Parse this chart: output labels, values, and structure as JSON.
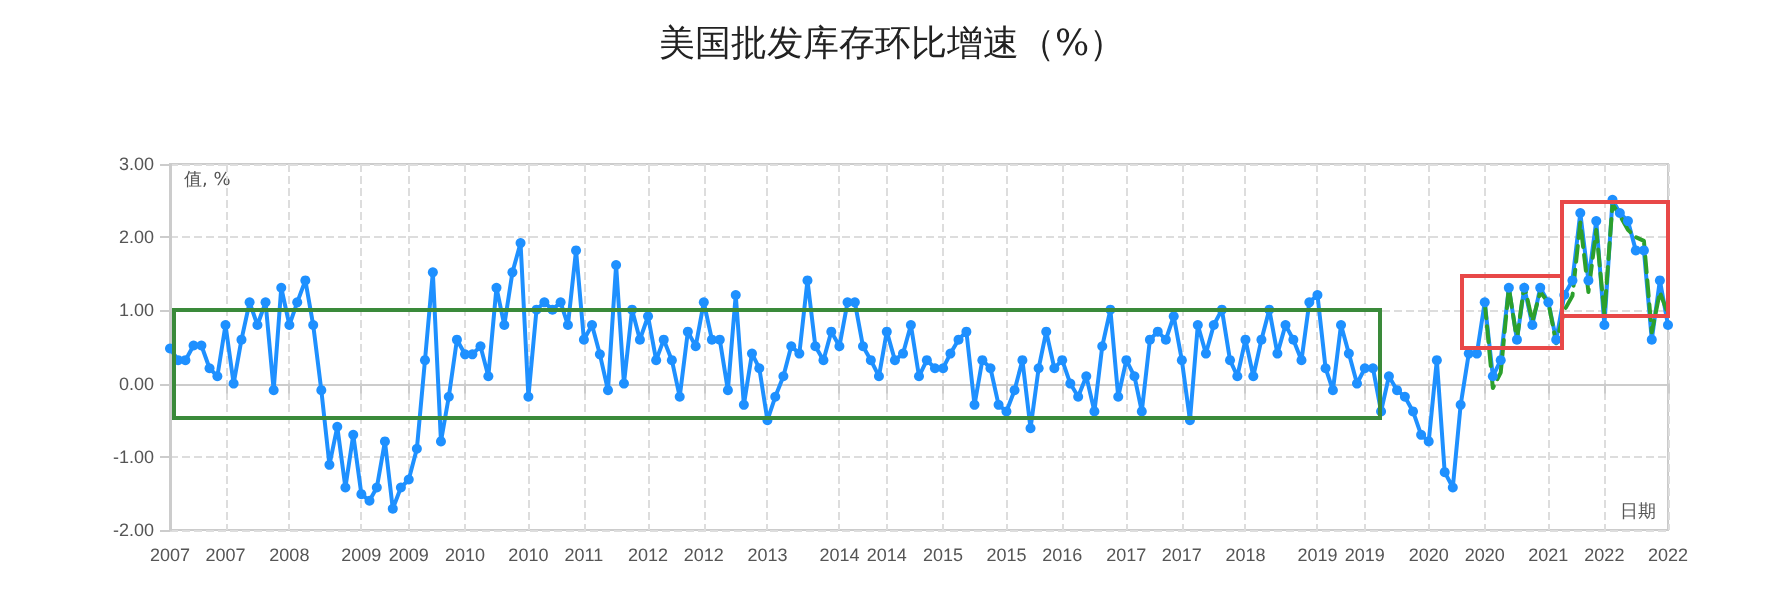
{
  "chart_data": {
    "type": "line",
    "title": "美国批发库存环比增速（%）",
    "ylabel": "值, %",
    "xlabel": "日期",
    "x": [
      "2007-01",
      "2007-02",
      "2007-03",
      "2007-04",
      "2007-05",
      "2007-06",
      "2007-07",
      "2007-08",
      "2007-09",
      "2007-10",
      "2007-11",
      "2007-12",
      "2008-01",
      "2008-02",
      "2008-03",
      "2008-04",
      "2008-05",
      "2008-06",
      "2008-07",
      "2008-08",
      "2008-09",
      "2008-10",
      "2008-11",
      "2008-12",
      "2009-01",
      "2009-02",
      "2009-03",
      "2009-04",
      "2009-05",
      "2009-06",
      "2009-07",
      "2009-08",
      "2009-09",
      "2009-10",
      "2009-11",
      "2009-12",
      "2010-01",
      "2010-02",
      "2010-03",
      "2010-04",
      "2010-05",
      "2010-06",
      "2010-07",
      "2010-08",
      "2010-09",
      "2010-10",
      "2010-11",
      "2010-12",
      "2011-01",
      "2011-02",
      "2011-03",
      "2011-04",
      "2011-05",
      "2011-06",
      "2011-07",
      "2011-08",
      "2011-09",
      "2011-10",
      "2011-11",
      "2011-12",
      "2012-01",
      "2012-02",
      "2012-03",
      "2012-04",
      "2012-05",
      "2012-06",
      "2012-07",
      "2012-08",
      "2012-09",
      "2012-10",
      "2012-11",
      "2012-12",
      "2013-01",
      "2013-02",
      "2013-03",
      "2013-04",
      "2013-05",
      "2013-06",
      "2013-07",
      "2013-08",
      "2013-09",
      "2013-10",
      "2013-11",
      "2013-12",
      "2014-01",
      "2014-02",
      "2014-03",
      "2014-04",
      "2014-05",
      "2014-06",
      "2014-07",
      "2014-08",
      "2014-09",
      "2014-10",
      "2014-11",
      "2014-12",
      "2015-01",
      "2015-02",
      "2015-03",
      "2015-04",
      "2015-05",
      "2015-06",
      "2015-07",
      "2015-08",
      "2015-09",
      "2015-10",
      "2015-11",
      "2015-12",
      "2016-01",
      "2016-02",
      "2016-03",
      "2016-04",
      "2016-05",
      "2016-06",
      "2016-07",
      "2016-08",
      "2016-09",
      "2016-10",
      "2016-11",
      "2016-12",
      "2017-01",
      "2017-02",
      "2017-03",
      "2017-04",
      "2017-05",
      "2017-06",
      "2017-07",
      "2017-08",
      "2017-09",
      "2017-10",
      "2017-11",
      "2017-12",
      "2018-01",
      "2018-02",
      "2018-03",
      "2018-04",
      "2018-05",
      "2018-06",
      "2018-07",
      "2018-08",
      "2018-09",
      "2018-10",
      "2018-11",
      "2018-12",
      "2019-01",
      "2019-02",
      "2019-03",
      "2019-04",
      "2019-05",
      "2019-06",
      "2019-07",
      "2019-08",
      "2019-09",
      "2019-10",
      "2019-11",
      "2019-12",
      "2020-01",
      "2020-02",
      "2020-03",
      "2020-04",
      "2020-05",
      "2020-06",
      "2020-07",
      "2020-08",
      "2020-09",
      "2020-10",
      "2020-11",
      "2020-12",
      "2021-01",
      "2021-02",
      "2021-03",
      "2021-04",
      "2021-05",
      "2021-06",
      "2021-07",
      "2021-08",
      "2021-09",
      "2021-10",
      "2021-11",
      "2021-12",
      "2022-01",
      "2022-02",
      "2022-03",
      "2022-04",
      "2022-05",
      "2022-06",
      "2022-07",
      "2022-08",
      "2022-09"
    ],
    "series": [
      {
        "color": "#1e90ff",
        "marker": "circle",
        "line_style": "solid",
        "values": [
          0.48,
          0.32,
          0.32,
          0.52,
          0.52,
          0.21,
          0.1,
          0.8,
          0,
          0.6,
          1.11,
          0.8,
          1.11,
          -0.09,
          1.31,
          0.8,
          1.11,
          1.41,
          0.8,
          -0.09,
          -1.11,
          -0.59,
          -1.42,
          -0.7,
          -1.51,
          -1.6,
          -1.42,
          -0.79,
          -1.71,
          -1.42,
          -1.31,
          -0.89,
          0.32,
          1.52,
          -0.79,
          -0.18,
          0.6,
          0.4,
          0.4,
          0.51,
          0.1,
          1.31,
          0.8,
          1.52,
          1.92,
          -0.18,
          1.01,
          1.11,
          1.01,
          1.11,
          0.8,
          1.82,
          0.6,
          0.8,
          0.4,
          -0.09,
          1.62,
          0,
          1.01,
          0.6,
          0.92,
          0.32,
          0.6,
          0.32,
          -0.18,
          0.71,
          0.51,
          1.11,
          0.6,
          0.6,
          -0.09,
          1.21,
          -0.29,
          0.41,
          0.21,
          -0.5,
          -0.18,
          0.1,
          0.51,
          0.41,
          1.41,
          0.51,
          0.32,
          0.71,
          0.51,
          1.11,
          1.11,
          0.51,
          0.32,
          0.1,
          0.71,
          0.32,
          0.41,
          0.8,
          0.1,
          0.32,
          0.21,
          0.21,
          0.41,
          0.6,
          0.71,
          -0.29,
          0.32,
          0.21,
          -0.29,
          -0.38,
          -0.09,
          0.32,
          -0.61,
          0.21,
          0.71,
          0.21,
          0.32,
          0,
          -0.18,
          0.1,
          -0.38,
          0.51,
          1.01,
          -0.18,
          0.32,
          0.1,
          -0.38,
          0.6,
          0.71,
          0.6,
          0.92,
          0.32,
          -0.5,
          0.8,
          0.41,
          0.8,
          1.01,
          0.32,
          0.1,
          0.6,
          0.1,
          0.6,
          1.01,
          0.41,
          0.8,
          0.6,
          0.32,
          1.11,
          1.21,
          0.21,
          -0.09,
          0.8,
          0.41,
          0,
          0.21,
          0.21,
          -0.38,
          0.1,
          -0.09,
          -0.18,
          -0.38,
          -0.7,
          -0.79,
          0.32,
          -1.21,
          -1.42,
          -0.29,
          0.41,
          0.41,
          1.11,
          0.1,
          0.32,
          1.31,
          0.6,
          1.31,
          0.8,
          1.31,
          1.11,
          0.6,
          1.21,
          1.41,
          2.33,
          1.41,
          2.22,
          0.8,
          2.51,
          2.33,
          2.22,
          1.82,
          1.82,
          0.6,
          1.41,
          0.8
        ]
      },
      {
        "color": "#2ca02c",
        "marker": "none",
        "line_style": "dashed",
        "values": [
          null,
          null,
          null,
          null,
          null,
          null,
          null,
          null,
          null,
          null,
          null,
          null,
          null,
          null,
          null,
          null,
          null,
          null,
          null,
          null,
          null,
          null,
          null,
          null,
          null,
          null,
          null,
          null,
          null,
          null,
          null,
          null,
          null,
          null,
          null,
          null,
          null,
          null,
          null,
          null,
          null,
          null,
          null,
          null,
          null,
          null,
          null,
          null,
          null,
          null,
          null,
          null,
          null,
          null,
          null,
          null,
          null,
          null,
          null,
          null,
          null,
          null,
          null,
          null,
          null,
          null,
          null,
          null,
          null,
          null,
          null,
          null,
          null,
          null,
          null,
          null,
          null,
          null,
          null,
          null,
          null,
          null,
          null,
          null,
          null,
          null,
          null,
          null,
          null,
          null,
          null,
          null,
          null,
          null,
          null,
          null,
          null,
          null,
          null,
          null,
          null,
          null,
          null,
          null,
          null,
          null,
          null,
          null,
          null,
          null,
          null,
          null,
          null,
          null,
          null,
          null,
          null,
          null,
          null,
          null,
          null,
          null,
          null,
          null,
          null,
          null,
          null,
          null,
          null,
          null,
          null,
          null,
          null,
          null,
          null,
          null,
          null,
          null,
          null,
          null,
          null,
          null,
          null,
          null,
          null,
          null,
          null,
          null,
          null,
          null,
          null,
          null,
          null,
          null,
          null,
          null,
          null,
          null,
          null,
          null,
          null,
          null,
          null,
          null,
          null,
          1.11,
          -0.06,
          0.15,
          1.31,
          0.6,
          1.35,
          0.85,
          1.25,
          1.11,
          0.55,
          1.0,
          1.2,
          2.2,
          1.25,
          2.1,
          0.95,
          2.45,
          2.3,
          2.1,
          2.0,
          1.95,
          0.7,
          1.25,
          0.95
        ]
      }
    ],
    "xlim": [
      "2007-01",
      "2022-09"
    ],
    "xticks": [
      {
        "value": "2007-01",
        "label": "2007"
      },
      {
        "value": "2007-08",
        "label": "2007"
      },
      {
        "value": "2008-04",
        "label": "2008"
      },
      {
        "value": "2009-01",
        "label": "2009"
      },
      {
        "value": "2009-07",
        "label": "2009"
      },
      {
        "value": "2010-02",
        "label": "2010"
      },
      {
        "value": "2010-10",
        "label": "2010"
      },
      {
        "value": "2011-05",
        "label": "2011"
      },
      {
        "value": "2012-01",
        "label": "2012"
      },
      {
        "value": "2012-08",
        "label": "2012"
      },
      {
        "value": "2013-04",
        "label": "2013"
      },
      {
        "value": "2014-01",
        "label": "2014"
      },
      {
        "value": "2014-07",
        "label": "2014"
      },
      {
        "value": "2015-02",
        "label": "2015"
      },
      {
        "value": "2015-10",
        "label": "2015"
      },
      {
        "value": "2016-05",
        "label": "2016"
      },
      {
        "value": "2017-01",
        "label": "2017"
      },
      {
        "value": "2017-08",
        "label": "2017"
      },
      {
        "value": "2018-04",
        "label": "2018"
      },
      {
        "value": "2019-01",
        "label": "2019"
      },
      {
        "value": "2019-07",
        "label": "2019"
      },
      {
        "value": "2020-03",
        "label": "2020"
      },
      {
        "value": "2020-10",
        "label": "2020"
      },
      {
        "value": "2021-06",
        "label": "2021"
      },
      {
        "value": "2022-01",
        "label": "2022"
      },
      {
        "value": "2022-09",
        "label": "2022"
      }
    ],
    "ylim": [
      -2,
      3
    ],
    "yticks": [
      {
        "value": -2,
        "label": "-2.00"
      },
      {
        "value": -1,
        "label": "-1.00"
      },
      {
        "value": 0,
        "label": "0.00"
      },
      {
        "value": 1,
        "label": "1.00"
      },
      {
        "value": 2,
        "label": "2.00"
      },
      {
        "value": 3,
        "label": "3.00"
      }
    ],
    "grid": true
  }
}
